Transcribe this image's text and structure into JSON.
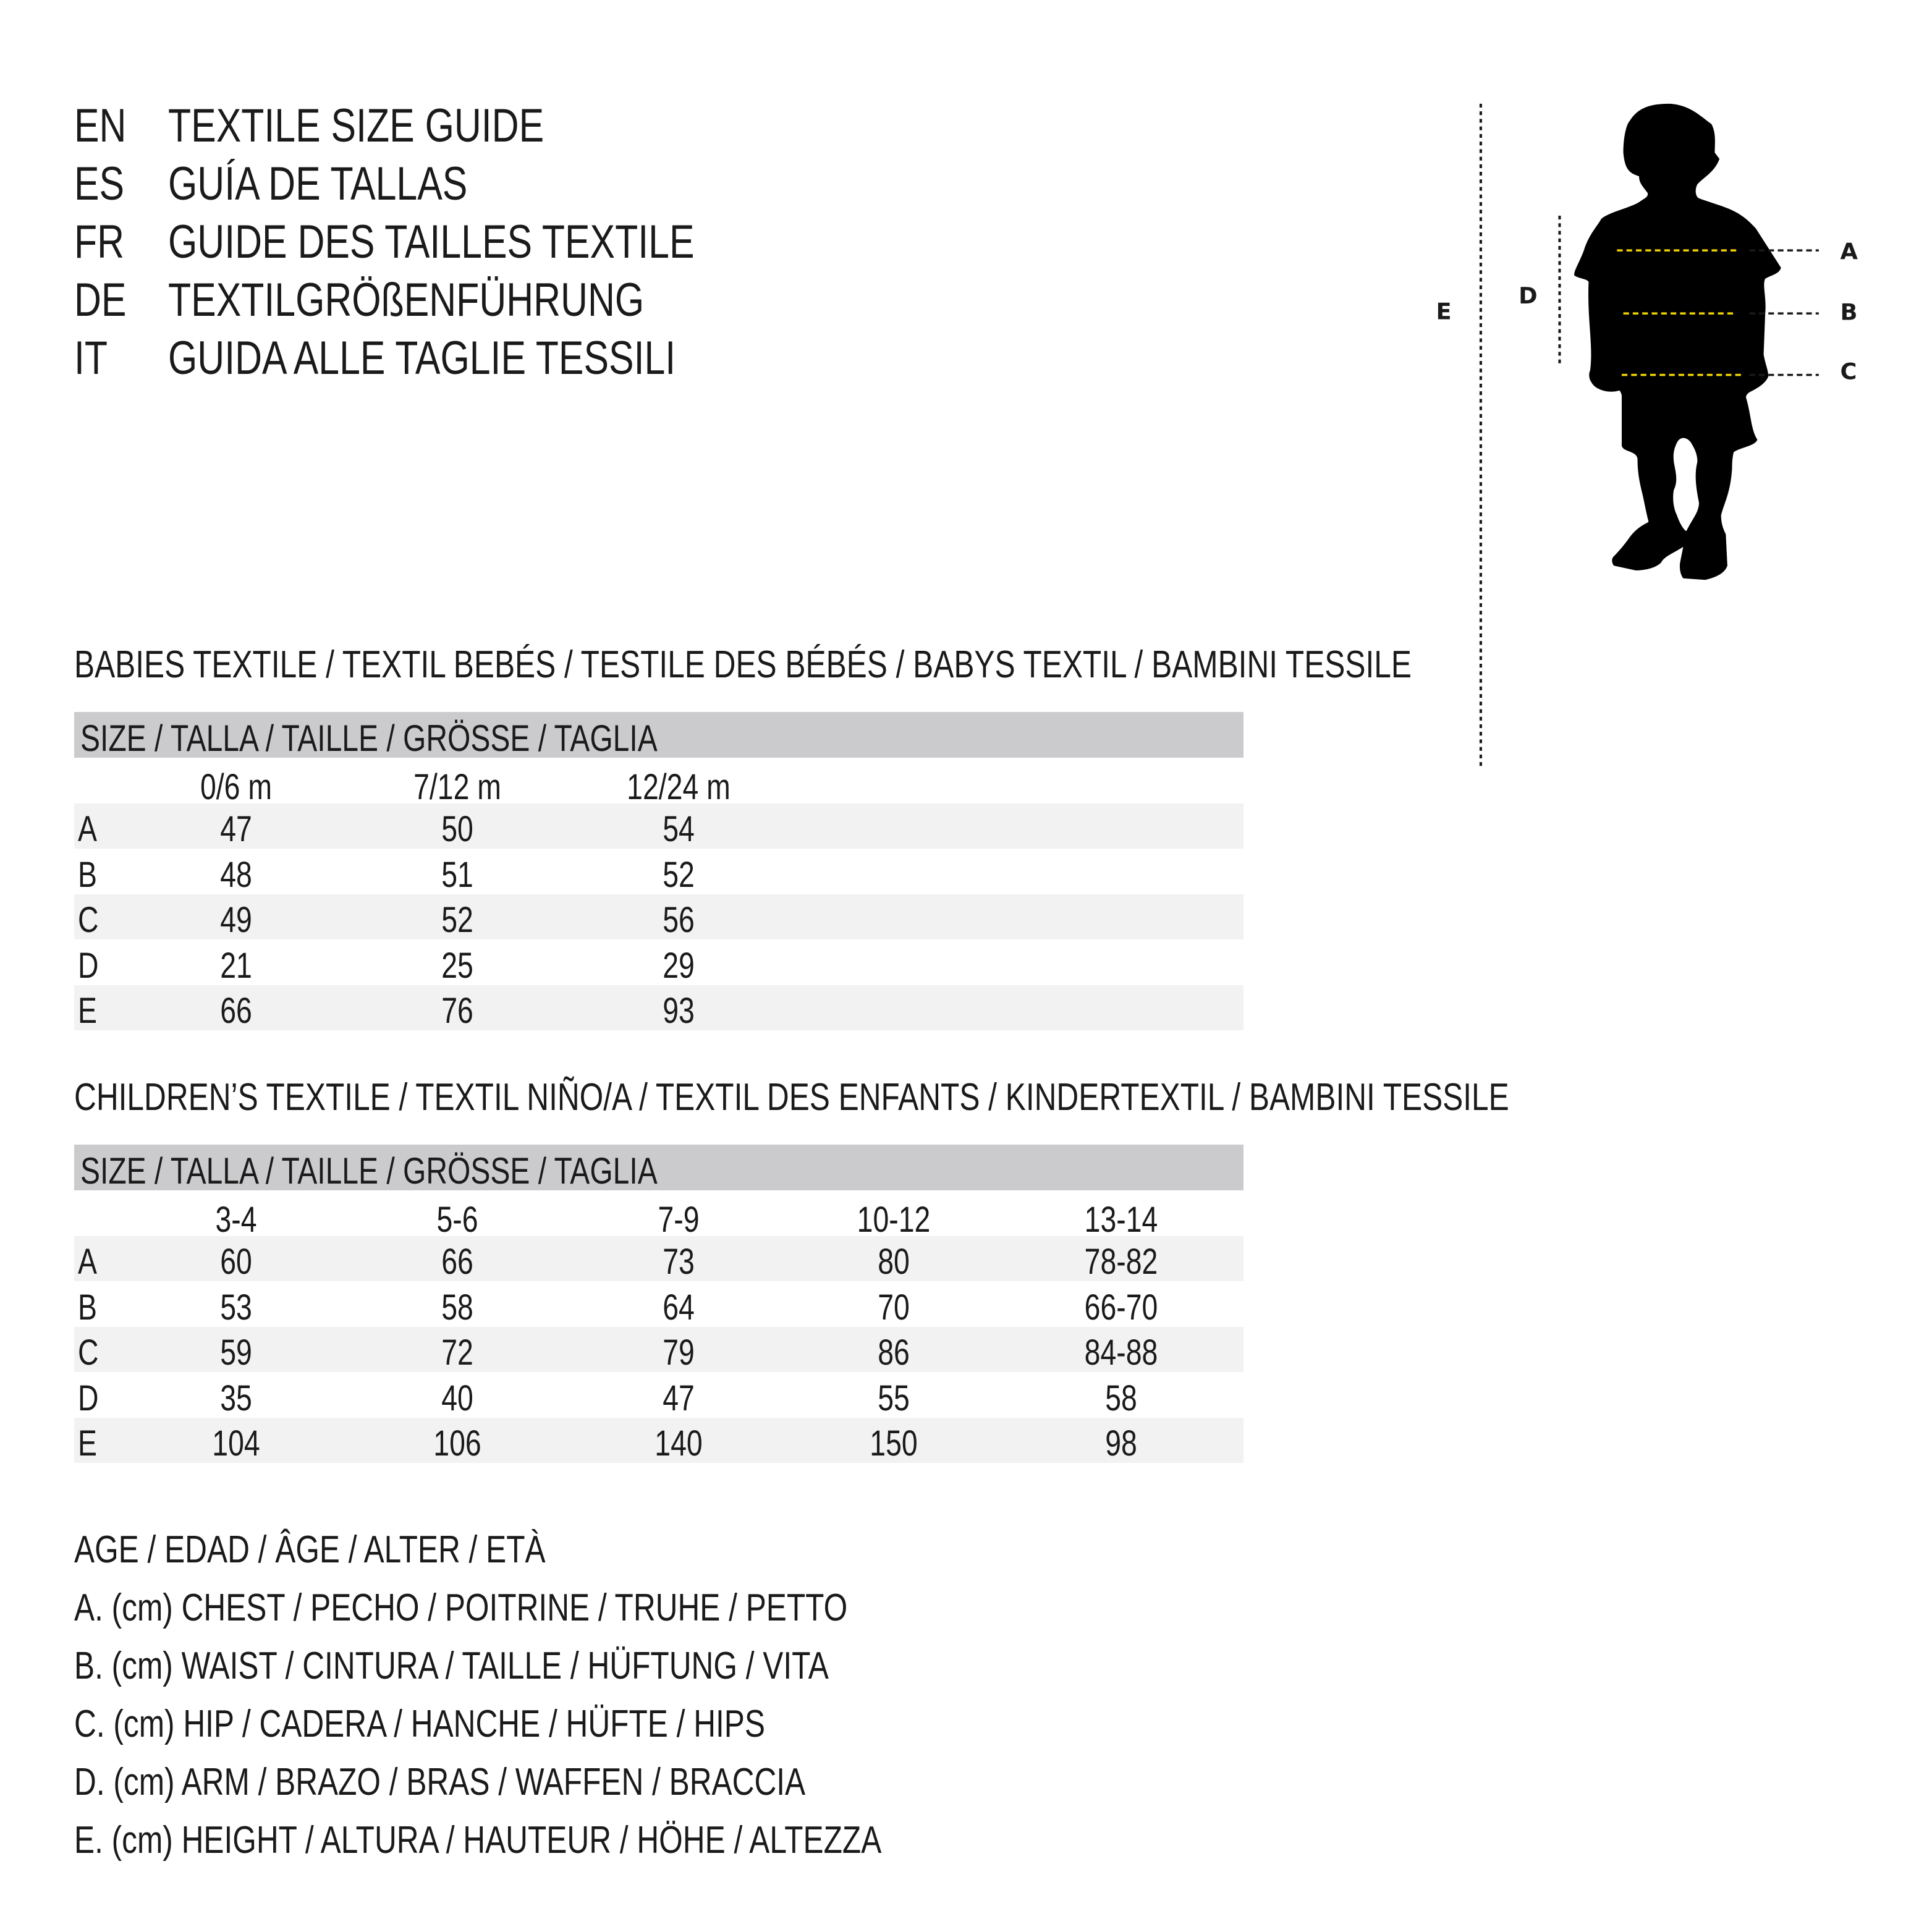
{
  "titles": [
    {
      "code": "EN",
      "text": "TEXTILE SIZE GUIDE"
    },
    {
      "code": "ES",
      "text": "GUÍA DE TALLAS"
    },
    {
      "code": "FR",
      "text": "GUIDE DES TAILLES TEXTILE"
    },
    {
      "code": "DE",
      "text": "TEXTILGRÖßENFÜHRUNG"
    },
    {
      "code": "IT",
      "text": "GUIDA ALLE TAGLIE TESSILI"
    }
  ],
  "babies": {
    "heading": "BABIES TEXTILE / TEXTIL BEBÉS / TESTILE DES BÉBÉS / BABYS TEXTIL / BAMBINI TESSILE",
    "size_label": "SIZE / TALLA / TAILLE / GRÖSSE / TAGLIA",
    "columns": [
      "0/6 m",
      "7/12 m",
      "12/24 m"
    ],
    "rows": [
      {
        "label": "A",
        "values": [
          "47",
          "50",
          "54"
        ]
      },
      {
        "label": "B",
        "values": [
          "48",
          "51",
          "52"
        ]
      },
      {
        "label": "C",
        "values": [
          "49",
          "52",
          "56"
        ]
      },
      {
        "label": "D",
        "values": [
          "21",
          "25",
          "29"
        ]
      },
      {
        "label": "E",
        "values": [
          "66",
          "76",
          "93"
        ]
      }
    ]
  },
  "children": {
    "heading": "CHILDREN’S TEXTILE / TEXTIL NIÑO/A / TEXTIL DES ENFANTS / KINDERTEXTIL / BAMBINI TESSILE",
    "size_label": "SIZE / TALLA / TAILLE / GRÖSSE / TAGLIA",
    "columns": [
      "3-4",
      "5-6",
      "7-9",
      "10-12",
      "13-14"
    ],
    "rows": [
      {
        "label": "A",
        "values": [
          "60",
          "66",
          "73",
          "80",
          "78-82"
        ]
      },
      {
        "label": "B",
        "values": [
          "53",
          "58",
          "64",
          "70",
          "66-70"
        ]
      },
      {
        "label": "C",
        "values": [
          "59",
          "72",
          "79",
          "86",
          "84-88"
        ]
      },
      {
        "label": "D",
        "values": [
          "35",
          "40",
          "47",
          "55",
          "58"
        ]
      },
      {
        "label": "E",
        "values": [
          "104",
          "106",
          "140",
          "150",
          "98"
        ]
      }
    ]
  },
  "legend": [
    "AGE / EDAD / ÂGE / ALTER / ETÀ",
    "A. (cm) CHEST / PECHO / POITRINE / TRUHE / PETTO",
    "B. (cm) WAIST / CINTURA / TAILLE / HÜFTUNG / VITA",
    "C. (cm) HIP / CADERA / HANCHE / HÜFTE / HIPS",
    "D. (cm) ARM / BRAZO / BRAS / WAFFEN / BRACCIA",
    "E. (cm) HEIGHT / ALTURA / HAUTEUR / HÖHE / ALTEZZA"
  ],
  "figure": {
    "labels": {
      "A": "A",
      "B": "B",
      "C": "C",
      "D": "D",
      "E": "E"
    },
    "colors": {
      "measure_line": "#f2d400",
      "guide_line": "#1a1a1a",
      "silhouette": "#000000"
    }
  }
}
